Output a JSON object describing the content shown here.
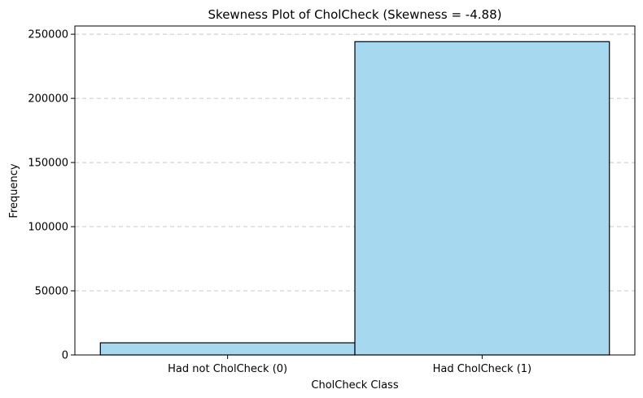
{
  "chart_data": {
    "type": "bar",
    "title": "Skewness Plot of CholCheck (Skewness = -4.88)",
    "xlabel": "CholCheck Class",
    "ylabel": "Frequency",
    "categories": [
      "Had not CholCheck (0)",
      "Had CholCheck (1)"
    ],
    "values": [
      9470,
      244210
    ],
    "ylim": [
      0,
      256420
    ],
    "yticks": [
      0,
      50000,
      100000,
      150000,
      200000,
      250000
    ],
    "bar_color": "#a6d9ef",
    "edge_color": "#000000",
    "grid": "y-dashed",
    "legend": "none"
  }
}
